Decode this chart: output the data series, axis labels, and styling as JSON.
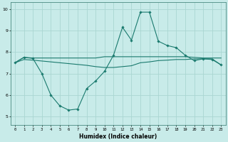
{
  "title": "",
  "xlabel": "Humidex (Indice chaleur)",
  "ylabel": "",
  "xlim": [
    -0.5,
    23.5
  ],
  "ylim": [
    4.6,
    10.3
  ],
  "yticks": [
    5,
    6,
    7,
    8,
    9,
    10
  ],
  "xticks": [
    0,
    1,
    2,
    3,
    4,
    5,
    6,
    7,
    8,
    9,
    10,
    11,
    12,
    13,
    14,
    15,
    16,
    17,
    18,
    19,
    20,
    21,
    22,
    23
  ],
  "bg_color": "#c8ebe9",
  "grid_color": "#aad6d2",
  "line_color": "#1a7a6e",
  "series": [
    {
      "x": [
        0,
        1,
        2,
        3,
        4,
        5,
        6,
        7,
        8,
        9,
        10,
        11,
        12,
        13,
        14,
        15,
        16,
        17,
        18,
        19,
        20,
        21,
        22,
        23
      ],
      "y": [
        7.5,
        7.75,
        7.72,
        7.72,
        7.72,
        7.72,
        7.72,
        7.72,
        7.72,
        7.72,
        7.78,
        7.78,
        7.78,
        7.78,
        7.78,
        7.78,
        7.78,
        7.78,
        7.78,
        7.78,
        7.75,
        7.72,
        7.72,
        7.72
      ],
      "marker": null,
      "linewidth": 0.8
    },
    {
      "x": [
        0,
        1,
        2,
        3,
        4,
        5,
        6,
        7,
        8,
        9,
        10,
        11,
        12,
        13,
        14,
        15,
        16,
        17,
        18,
        19,
        20,
        21,
        22,
        23
      ],
      "y": [
        7.5,
        7.65,
        7.62,
        7.58,
        7.54,
        7.5,
        7.46,
        7.42,
        7.38,
        7.32,
        7.28,
        7.28,
        7.32,
        7.36,
        7.5,
        7.54,
        7.6,
        7.62,
        7.65,
        7.65,
        7.68,
        7.68,
        7.68,
        7.4
      ],
      "marker": null,
      "linewidth": 0.8
    },
    {
      "x": [
        0,
        1,
        2,
        3,
        4,
        5,
        6,
        7,
        8,
        9,
        10,
        11,
        12,
        13,
        14,
        15,
        16,
        17,
        18,
        19,
        20,
        21,
        22,
        23
      ],
      "y": [
        7.5,
        7.75,
        7.7,
        7.0,
        6.0,
        5.5,
        5.3,
        5.35,
        6.3,
        6.65,
        7.1,
        7.85,
        9.15,
        8.55,
        9.85,
        9.85,
        8.5,
        8.3,
        8.2,
        7.85,
        7.6,
        7.68,
        7.65,
        7.4
      ],
      "marker": "D",
      "markersize": 1.8,
      "linewidth": 0.8
    }
  ]
}
